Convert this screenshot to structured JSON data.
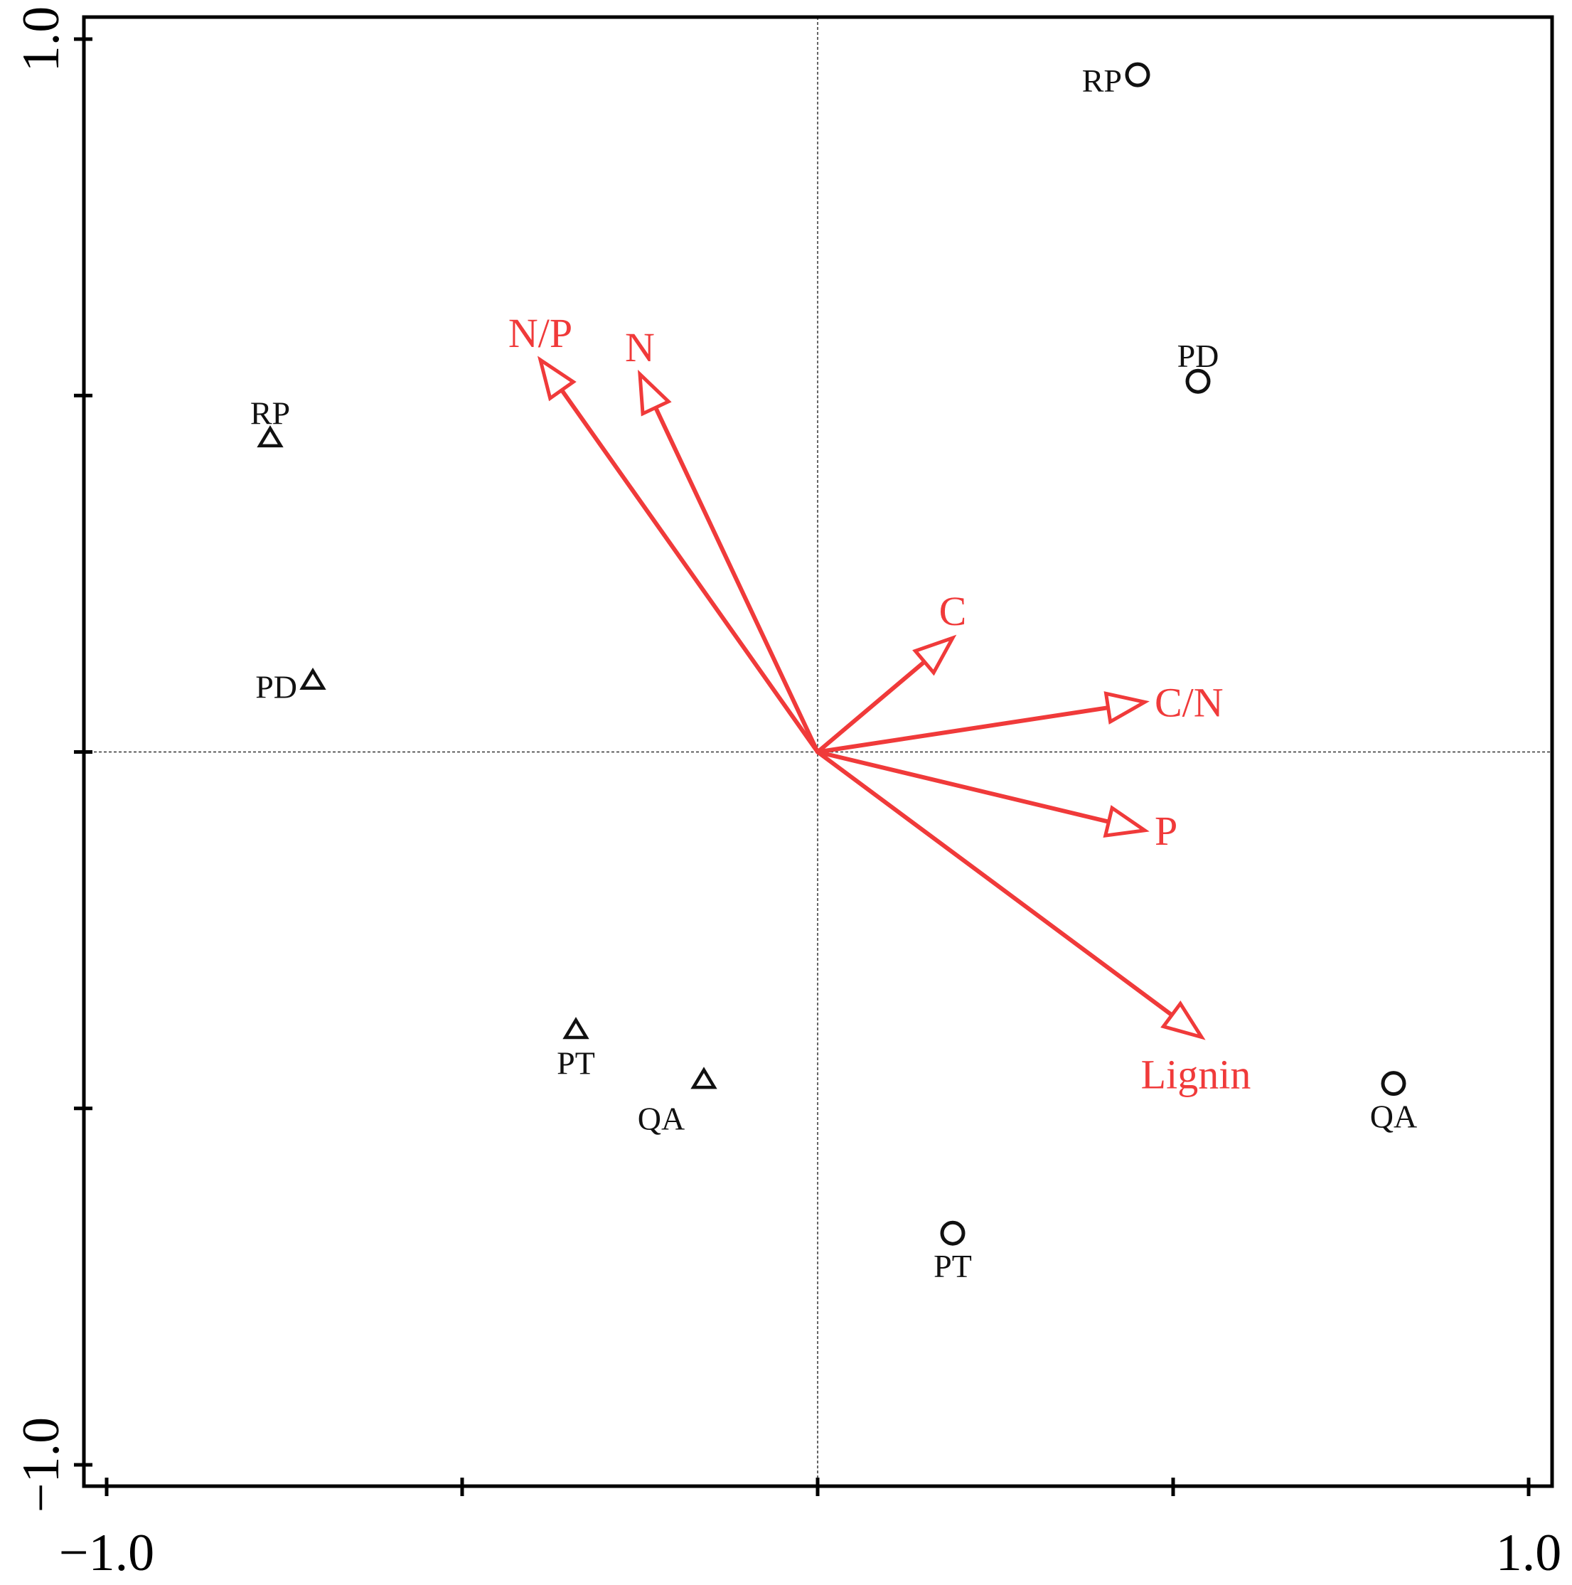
{
  "chart_data": {
    "type": "scatter",
    "title": "",
    "xlabel": "",
    "ylabel": "",
    "xlim": [
      -1.0,
      1.0
    ],
    "ylim": [
      -1.0,
      1.0
    ],
    "x_ticks": [
      -1.0,
      -0.5,
      0,
      0.5,
      1.0
    ],
    "y_ticks": [
      -1.0,
      -0.5,
      0,
      0.5,
      1.0
    ],
    "x_tick_labels": [
      {
        "value": -1.0,
        "label": "−1.0"
      },
      {
        "value": 1.0,
        "label": "1.0"
      }
    ],
    "y_tick_labels": [
      {
        "value": 1.0,
        "label": "1.0"
      },
      {
        "value": -1.0,
        "label": "−1.0"
      }
    ],
    "zero_lines": true,
    "grid": false,
    "series": [
      {
        "marker": "triangle",
        "color": "#111111",
        "points": [
          {
            "label": "RP",
            "x": -0.77,
            "y": 0.44,
            "label_pos": "above"
          },
          {
            "label": "PD",
            "x": -0.71,
            "y": 0.1,
            "label_pos": "left"
          },
          {
            "label": "PT",
            "x": -0.34,
            "y": -0.39,
            "label_pos": "below"
          },
          {
            "label": "QA",
            "x": -0.16,
            "y": -0.46,
            "label_pos": "below-left"
          }
        ]
      },
      {
        "marker": "circle",
        "color": "#111111",
        "points": [
          {
            "label": "RP",
            "x": 0.45,
            "y": 0.95,
            "label_pos": "left"
          },
          {
            "label": "PD",
            "x": 0.535,
            "y": 0.52,
            "label_pos": "above"
          },
          {
            "label": "QA",
            "x": 0.81,
            "y": -0.465,
            "label_pos": "below"
          },
          {
            "label": "PT",
            "x": 0.19,
            "y": -0.675,
            "label_pos": "below"
          }
        ]
      }
    ],
    "vectors": {
      "color": "#f03a3a",
      "items": [
        {
          "label": "N/P",
          "x": -0.39,
          "y": 0.55,
          "label_pos": "above"
        },
        {
          "label": "N",
          "x": -0.25,
          "y": 0.53,
          "label_pos": "above"
        },
        {
          "label": "C",
          "x": 0.19,
          "y": 0.16,
          "label_pos": "above"
        },
        {
          "label": "C/N",
          "x": 0.46,
          "y": 0.07,
          "label_pos": "right"
        },
        {
          "label": "P",
          "x": 0.46,
          "y": -0.11,
          "label_pos": "right"
        },
        {
          "label": "Lignin",
          "x": 0.54,
          "y": -0.4,
          "label_pos": "below"
        }
      ]
    }
  }
}
